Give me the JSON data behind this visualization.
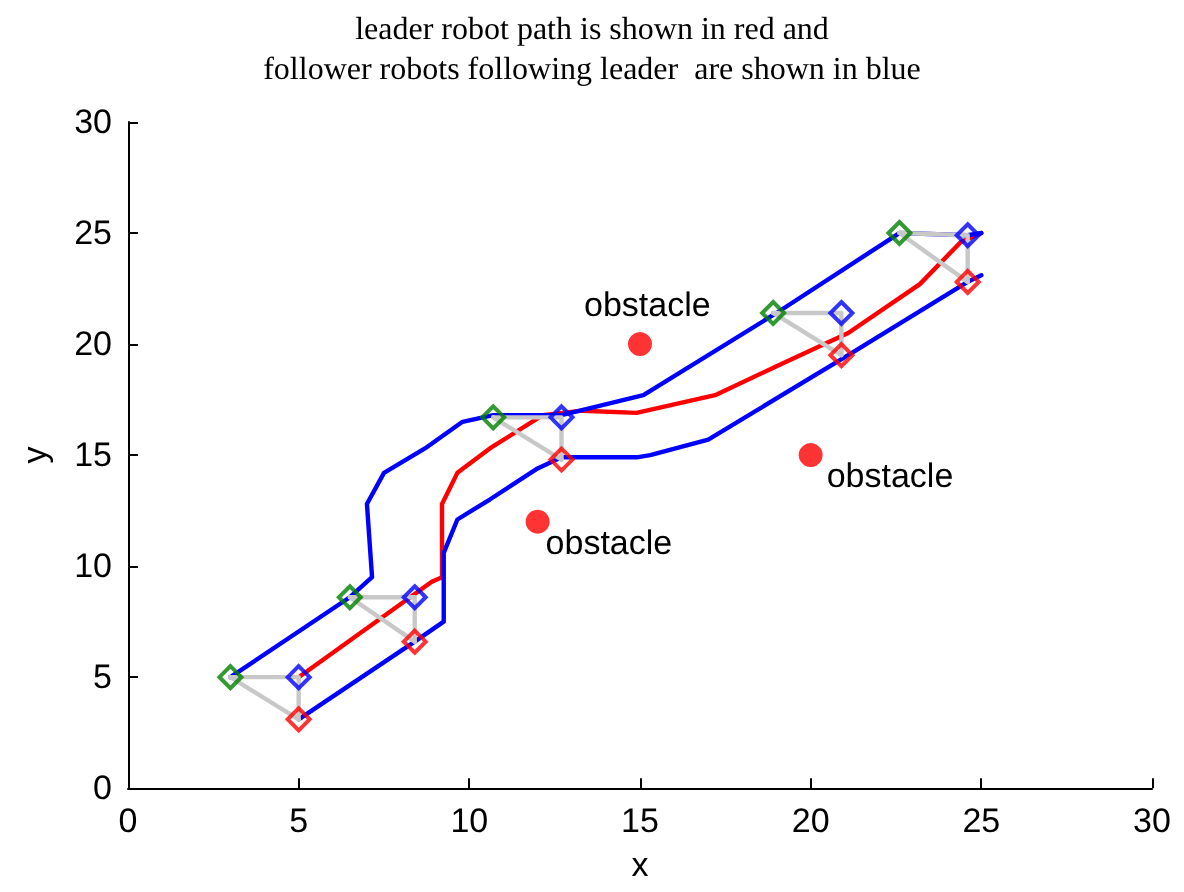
{
  "chart_data": {
    "type": "line",
    "title": "leader robot path is shown in red and",
    "subtitle": "follower robots following leader  are shown in blue",
    "xlabel": "x",
    "ylabel": "y",
    "xlim": [
      0,
      30
    ],
    "ylim": [
      0,
      30
    ],
    "xticks": [
      0,
      5,
      10,
      15,
      20,
      25,
      30
    ],
    "yticks": [
      0,
      5,
      10,
      15,
      20,
      25,
      30
    ],
    "grid": false,
    "marker": "none",
    "line_style": "solid",
    "series": [
      {
        "color": "#ff0000",
        "x": [
          5,
          8.9,
          9.2,
          9.2,
          9.65,
          10.6,
          12.15,
          13.3,
          14.9,
          17.2,
          19,
          21.1,
          23.2,
          24.4,
          25
        ],
        "values": [
          5,
          9.3,
          9.5,
          12.8,
          14.2,
          15.3,
          16.8,
          17,
          16.9,
          17.7,
          19,
          20.5,
          22.7,
          24.6,
          25
        ]
      },
      {
        "color": "#0000ff",
        "x": [
          3,
          6.5,
          7.15,
          7,
          7.5,
          8.7,
          9.8,
          10.7,
          12.7,
          15.1,
          19,
          22.6,
          24.6,
          25
        ],
        "values": [
          5,
          8.6,
          9.5,
          12.8,
          14.2,
          15.3,
          16.5,
          16.8,
          16.8,
          17.7,
          21.4,
          25,
          24.9,
          25
        ]
      },
      {
        "color": "#0000ff",
        "x": [
          5,
          8.4,
          9.25,
          9.25,
          9.65,
          10.6,
          12,
          12.7,
          14.9,
          15.3,
          17,
          21.1,
          24.6,
          25
        ],
        "values": [
          3.1,
          6.6,
          7.5,
          10.6,
          12.1,
          13,
          14.4,
          14.9,
          14.9,
          15,
          15.7,
          19.5,
          22.8,
          23.1
        ]
      },
      {
        "color": "#c8c8c8",
        "x": [
          3,
          5,
          5
        ],
        "values": [
          5,
          5,
          3.1
        ]
      },
      {
        "color": "#c8c8c8",
        "x": [
          3,
          5
        ],
        "values": [
          5,
          3.1
        ]
      },
      {
        "color": "#c8c8c8",
        "x": [
          6.5,
          8.4,
          8.4
        ],
        "values": [
          8.6,
          8.6,
          6.6
        ]
      },
      {
        "color": "#c8c8c8",
        "x": [
          6.5,
          8.4
        ],
        "values": [
          8.6,
          6.6
        ]
      },
      {
        "color": "#c8c8c8",
        "x": [
          10.7,
          12.7,
          12.7
        ],
        "values": [
          16.7,
          16.7,
          14.8
        ]
      },
      {
        "color": "#c8c8c8",
        "x": [
          10.7,
          12.7
        ],
        "values": [
          16.7,
          14.8
        ]
      },
      {
        "color": "#c8c8c8",
        "x": [
          18.9,
          20.9,
          20.9
        ],
        "values": [
          21.4,
          21.4,
          19.5
        ]
      },
      {
        "color": "#c8c8c8",
        "x": [
          18.9,
          20.9
        ],
        "values": [
          21.4,
          19.5
        ]
      },
      {
        "color": "#c8c8c8",
        "x": [
          22.6,
          24.6,
          24.6
        ],
        "values": [
          25,
          24.9,
          22.8
        ]
      },
      {
        "color": "#c8c8c8",
        "x": [
          22.6,
          24.6
        ],
        "values": [
          25,
          22.8
        ]
      },
      {
        "type": "scatter",
        "marker": "diamond",
        "color": "#008000",
        "x": [
          3,
          6.5,
          10.7,
          18.9,
          22.6
        ],
        "values": [
          5,
          8.6,
          16.7,
          21.4,
          25
        ]
      },
      {
        "type": "scatter",
        "marker": "diamond",
        "color": "#0000ff",
        "x": [
          5,
          8.4,
          12.7,
          20.9,
          24.6
        ],
        "values": [
          5,
          8.6,
          16.7,
          21.4,
          24.9
        ]
      },
      {
        "type": "scatter",
        "marker": "diamond",
        "color": "#ff0000",
        "x": [
          5,
          8.4,
          12.7,
          20.9,
          24.6
        ],
        "values": [
          3.1,
          6.6,
          14.8,
          19.5,
          22.8
        ]
      },
      {
        "type": "scatter",
        "marker": "circle",
        "color": "#ff0000",
        "x": [
          15,
          20,
          12
        ],
        "values": [
          20,
          15,
          12
        ]
      }
    ],
    "annotations": [
      {
        "text": "obstacle",
        "x": 15,
        "y": 20
      },
      {
        "text": "obstacle",
        "x": 20,
        "y": 15
      },
      {
        "text": "obstacle",
        "x": 12,
        "y": 12
      }
    ]
  }
}
